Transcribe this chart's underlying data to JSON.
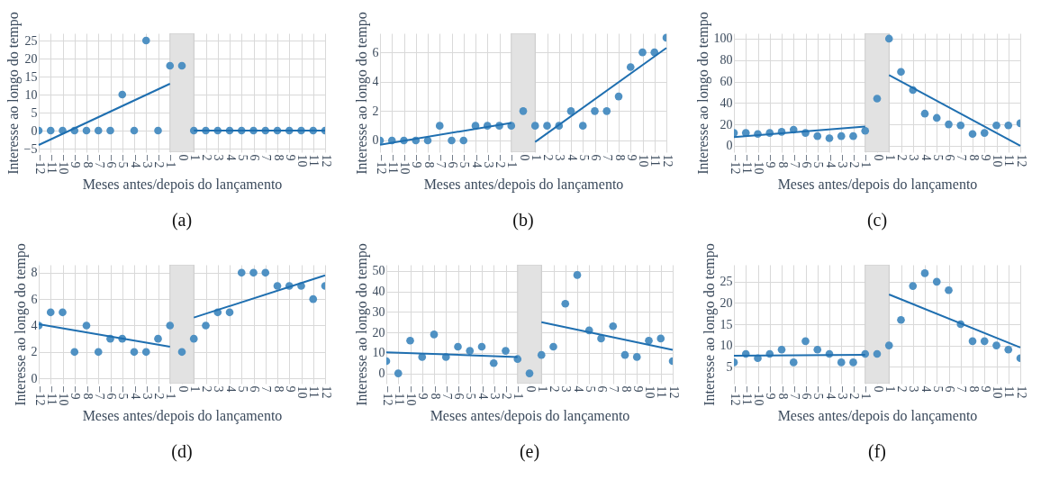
{
  "chart_data": [
    {
      "type": "scatter",
      "title": "(a)",
      "xlabel": "Meses antes/depois do lançamento",
      "ylabel": "Interesse ao longo do tempo",
      "x": [
        -12,
        -11,
        -10,
        -9,
        -8,
        -7,
        -6,
        -5,
        -4,
        -3,
        -2,
        -1,
        0,
        1,
        2,
        3,
        4,
        5,
        6,
        7,
        8,
        9,
        10,
        11,
        12
      ],
      "xlim": [
        -12,
        12
      ],
      "xticks": [
        -12,
        -11,
        -10,
        -9,
        -8,
        -7,
        -6,
        -5,
        -4,
        -3,
        -2,
        -1,
        0,
        1,
        2,
        3,
        4,
        5,
        6,
        7,
        8,
        9,
        10,
        11,
        12
      ],
      "ylim": [
        -6,
        27
      ],
      "yticks": [
        -5,
        0,
        5,
        10,
        15,
        20,
        25
      ],
      "grid": true,
      "bands": [
        {
          "axis": "x",
          "from": -1,
          "to": 1,
          "color": "#e2e2e2"
        }
      ],
      "series": [
        {
          "marker": "circle",
          "color": "#4f91c3",
          "values": [
            0,
            0,
            0,
            0,
            0,
            0,
            0,
            10,
            0,
            25,
            0,
            18,
            18,
            0,
            0,
            0,
            0,
            0,
            0,
            0,
            0,
            0,
            0,
            0,
            0
          ]
        },
        {
          "type": "line",
          "color": "#1f6fb0",
          "x": [
            -12,
            -1
          ],
          "values": [
            -4,
            13
          ]
        },
        {
          "type": "line",
          "color": "#1f6fb0",
          "x": [
            1,
            12
          ],
          "values": [
            0,
            0
          ]
        }
      ]
    },
    {
      "type": "scatter",
      "title": "(b)",
      "xlabel": "Meses antes/depois do lançamento",
      "ylabel": "Interesse ao longo do tempo",
      "x": [
        -12,
        -11,
        -10,
        -9,
        -8,
        -7,
        -6,
        -5,
        -4,
        -3,
        -2,
        -1,
        0,
        1,
        2,
        3,
        4,
        5,
        6,
        7,
        8,
        9,
        10,
        11,
        12
      ],
      "xlim": [
        -12,
        12
      ],
      "xticks": [
        -12,
        -11,
        -10,
        -9,
        -8,
        -7,
        -6,
        -5,
        -4,
        -3,
        -2,
        -1,
        0,
        1,
        2,
        3,
        4,
        5,
        6,
        7,
        8,
        9,
        10,
        11,
        12
      ],
      "ylim": [
        -0.8,
        7.3
      ],
      "yticks": [
        0,
        2,
        4,
        6
      ],
      "grid": true,
      "bands": [
        {
          "axis": "x",
          "from": -1,
          "to": 1,
          "color": "#e2e2e2"
        }
      ],
      "series": [
        {
          "marker": "circle",
          "color": "#4f91c3",
          "values": [
            0,
            0,
            0,
            0,
            0,
            1,
            0,
            0,
            1,
            1,
            1,
            1,
            2,
            1,
            1,
            1,
            2,
            1,
            2,
            2,
            3,
            5,
            6,
            6,
            7
          ]
        },
        {
          "type": "line",
          "color": "#1f6fb0",
          "x": [
            -12,
            -1
          ],
          "values": [
            -0.3,
            1.2
          ]
        },
        {
          "type": "line",
          "color": "#1f6fb0",
          "x": [
            1,
            12
          ],
          "values": [
            -0.1,
            6.3
          ]
        }
      ]
    },
    {
      "type": "scatter",
      "title": "(c)",
      "xlabel": "Meses antes/depois do lançamento",
      "ylabel": "Interesse ao longo do tempo",
      "x": [
        -12,
        -11,
        -10,
        -9,
        -8,
        -7,
        -6,
        -5,
        -4,
        -3,
        -2,
        -1,
        0,
        1,
        2,
        3,
        4,
        5,
        6,
        7,
        8,
        9,
        10,
        11,
        12
      ],
      "xlim": [
        -12,
        12
      ],
      "xticks": [
        -12,
        -11,
        -10,
        -9,
        -8,
        -7,
        -6,
        -5,
        -4,
        -3,
        -2,
        -1,
        0,
        1,
        2,
        3,
        4,
        5,
        6,
        7,
        8,
        9,
        10,
        11,
        12
      ],
      "ylim": [
        -6,
        105
      ],
      "yticks": [
        0,
        20,
        40,
        60,
        80,
        100
      ],
      "grid": true,
      "bands": [
        {
          "axis": "x",
          "from": -1,
          "to": 1,
          "color": "#e2e2e2"
        }
      ],
      "series": [
        {
          "marker": "circle",
          "color": "#4f91c3",
          "values": [
            12,
            12,
            11,
            12,
            13,
            15,
            12,
            9,
            7,
            9,
            9,
            14,
            44,
            100,
            69,
            52,
            30,
            26,
            20,
            19,
            11,
            12,
            19,
            19,
            21
          ]
        },
        {
          "type": "line",
          "color": "#1f6fb0",
          "x": [
            -12,
            -1
          ],
          "values": [
            8,
            18
          ]
        },
        {
          "type": "line",
          "color": "#1f6fb0",
          "x": [
            1,
            12
          ],
          "values": [
            66,
            0
          ]
        }
      ]
    },
    {
      "type": "scatter",
      "title": "(d)",
      "xlabel": "Meses antes/depois do lançamento",
      "ylabel": "Interesse ao longo do tempo",
      "x": [
        -12,
        -11,
        -10,
        -9,
        -8,
        -7,
        -6,
        -5,
        -4,
        -3,
        -2,
        -1,
        0,
        1,
        2,
        3,
        4,
        5,
        6,
        7,
        8,
        9,
        10,
        11,
        12
      ],
      "xlim": [
        -12,
        12
      ],
      "xticks": [
        -12,
        -11,
        -10,
        -9,
        -8,
        -7,
        -6,
        -5,
        -4,
        -3,
        -2,
        -1,
        0,
        1,
        2,
        3,
        4,
        5,
        6,
        7,
        8,
        9,
        10,
        11,
        12
      ],
      "ylim": [
        -0.4,
        8.6
      ],
      "yticks": [
        0,
        2,
        4,
        6,
        8
      ],
      "grid": true,
      "bands": [
        {
          "axis": "x",
          "from": -1,
          "to": 1,
          "color": "#e2e2e2"
        }
      ],
      "series": [
        {
          "marker": "circle",
          "color": "#4f91c3",
          "values": [
            4,
            5,
            5,
            2,
            4,
            2,
            3,
            3,
            2,
            2,
            3,
            4,
            2,
            3,
            4,
            5,
            5,
            8,
            8,
            8,
            7,
            7,
            7,
            6,
            7
          ]
        },
        {
          "type": "line",
          "color": "#1f6fb0",
          "x": [
            -12,
            -1
          ],
          "values": [
            4.1,
            2.4
          ]
        },
        {
          "type": "line",
          "color": "#1f6fb0",
          "x": [
            1,
            12
          ],
          "values": [
            4.6,
            7.8
          ]
        }
      ]
    },
    {
      "type": "scatter",
      "title": "(e)",
      "xlabel": "Meses antes/depois do lançamento",
      "ylabel": "Interesse ao longo do tempo",
      "x": [
        -12,
        -11,
        -10,
        -9,
        -8,
        -7,
        -6,
        -5,
        -4,
        -3,
        -2,
        -1,
        0,
        1,
        2,
        3,
        4,
        5,
        6,
        7,
        8,
        9,
        10,
        11,
        12
      ],
      "xlim": [
        -12,
        12
      ],
      "xticks": [
        -12,
        -11,
        -10,
        -9,
        -8,
        -7,
        -6,
        -5,
        -4,
        -3,
        -2,
        -1,
        0,
        1,
        2,
        3,
        4,
        5,
        6,
        7,
        8,
        9,
        10,
        11,
        12
      ],
      "ylim": [
        -5,
        53
      ],
      "yticks": [
        0,
        10,
        20,
        30,
        40,
        50
      ],
      "grid": true,
      "bands": [
        {
          "axis": "x",
          "from": -1,
          "to": 1,
          "color": "#e2e2e2"
        }
      ],
      "series": [
        {
          "marker": "circle",
          "color": "#4f91c3",
          "values": [
            6,
            0,
            16,
            8,
            19,
            8,
            13,
            11,
            13,
            5,
            11,
            7,
            0,
            9,
            13,
            34,
            48,
            21,
            17,
            23,
            9,
            8,
            16,
            17,
            6
          ]
        },
        {
          "type": "line",
          "color": "#1f6fb0",
          "x": [
            -12,
            -1
          ],
          "values": [
            10.3,
            8
          ]
        },
        {
          "type": "line",
          "color": "#1f6fb0",
          "x": [
            1,
            12
          ],
          "values": [
            25,
            11.5
          ]
        }
      ]
    },
    {
      "type": "scatter",
      "title": "(f)",
      "xlabel": "Meses antes/depois do lançamento",
      "ylabel": "Interesse ao longo do tempo",
      "x": [
        -12,
        -11,
        -10,
        -9,
        -8,
        -7,
        -6,
        -5,
        -4,
        -3,
        -2,
        -1,
        0,
        1,
        2,
        3,
        4,
        5,
        6,
        7,
        8,
        9,
        10,
        11,
        12
      ],
      "xlim": [
        -12,
        12
      ],
      "xticks": [
        -12,
        -11,
        -10,
        -9,
        -8,
        -7,
        -6,
        -5,
        -4,
        -3,
        -2,
        -1,
        0,
        1,
        2,
        3,
        4,
        5,
        6,
        7,
        8,
        9,
        10,
        11,
        12
      ],
      "ylim": [
        1,
        29
      ],
      "yticks": [
        5,
        10,
        15,
        20,
        25
      ],
      "grid": true,
      "bands": [
        {
          "axis": "x",
          "from": -1,
          "to": 1,
          "color": "#e2e2e2"
        }
      ],
      "series": [
        {
          "marker": "circle",
          "color": "#4f91c3",
          "values": [
            6,
            8,
            7,
            8,
            9,
            6,
            11,
            9,
            8,
            6,
            6,
            8,
            8,
            10,
            16,
            24,
            27,
            25,
            23,
            15,
            11,
            11,
            10,
            9,
            7
          ]
        },
        {
          "type": "line",
          "color": "#1f6fb0",
          "x": [
            -12,
            -1
          ],
          "values": [
            7.6,
            7.8
          ]
        },
        {
          "type": "line",
          "color": "#1f6fb0",
          "x": [
            1,
            12
          ],
          "values": [
            22,
            9.5
          ]
        }
      ]
    }
  ]
}
